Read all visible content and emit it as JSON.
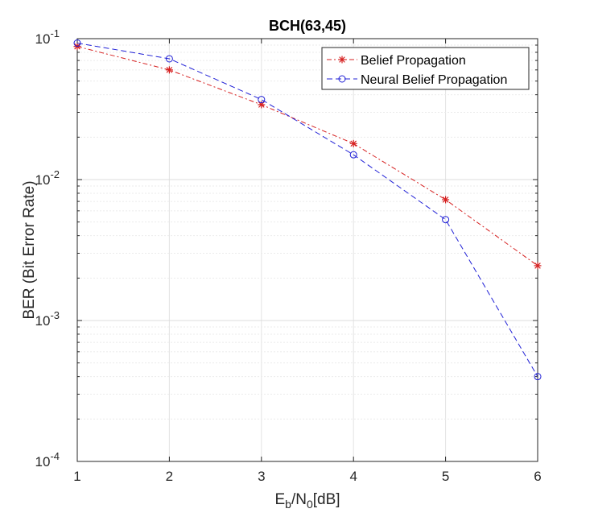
{
  "chart_data": {
    "type": "line",
    "title": "BCH(63,45)",
    "xlabel": {
      "base": "E",
      "sub1": "b",
      "mid": "/N",
      "sub2": "0",
      "tail": "[dB]"
    },
    "ylabel": "BER (Bit Error Rate)",
    "y_scale": "log",
    "xlim": [
      1,
      6
    ],
    "ylim": [
      0.0001,
      0.1
    ],
    "x_ticks": [
      "1",
      "2",
      "3",
      "4",
      "5",
      "6"
    ],
    "y_ticks": [
      {
        "base": "10",
        "exp": "-1"
      },
      {
        "base": "10",
        "exp": "-2"
      },
      {
        "base": "10",
        "exp": "-3"
      },
      {
        "base": "10",
        "exp": "-4"
      }
    ],
    "grid": true,
    "legend_position": "top-right",
    "x": [
      1,
      2,
      3,
      4,
      5,
      6
    ],
    "series": [
      {
        "name": "Belief Propagation",
        "color": "#d62020",
        "line_style": "dash-dot",
        "marker": "asterisk",
        "values": [
          0.088,
          0.06,
          0.034,
          0.018,
          0.0072,
          0.00245
        ]
      },
      {
        "name": "Neural Belief Propagation",
        "color": "#2020d6",
        "line_style": "dashed",
        "marker": "circle",
        "values": [
          0.093,
          0.072,
          0.037,
          0.015,
          0.0052,
          0.0004
        ]
      }
    ]
  }
}
